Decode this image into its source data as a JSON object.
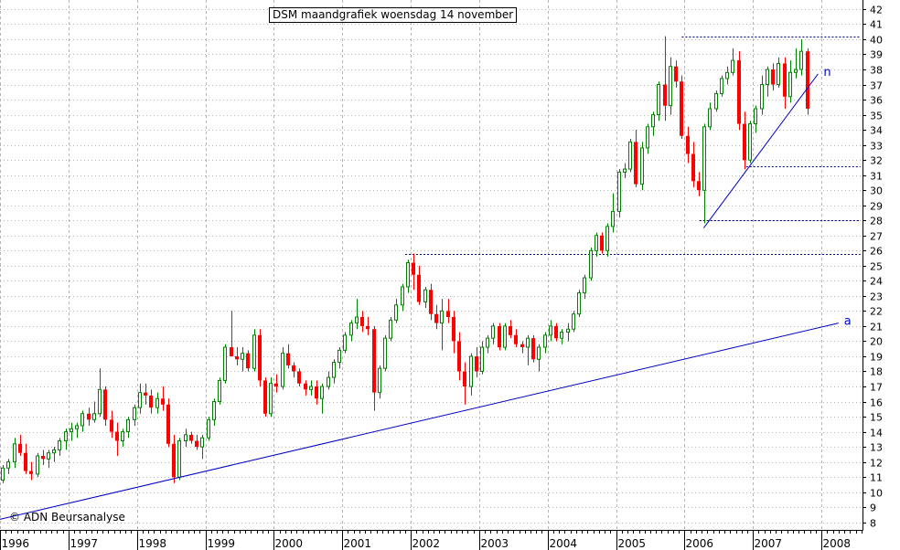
{
  "chart_data": {
    "type": "candlestick",
    "title": "DSM maandgrafiek woensdag 14 november",
    "copyright": "© ADN Beursanalyse",
    "y_ticks": [
      8,
      9,
      10,
      11,
      12,
      13,
      14,
      15,
      16,
      17,
      18,
      19,
      20,
      21,
      22,
      23,
      24,
      25,
      26,
      27,
      28,
      29,
      30,
      31,
      32,
      33,
      34,
      35,
      36,
      37,
      38,
      39,
      40,
      41,
      42
    ],
    "ylim": [
      7.5,
      42.6
    ],
    "x_ticks": [
      "1996",
      "1997",
      "1998",
      "1999",
      "2000",
      "2001",
      "2002",
      "2003",
      "2004",
      "2005",
      "2006",
      "2007",
      "2008"
    ],
    "xlim": [
      1996.0,
      2008.6
    ],
    "colors": {
      "up": "#008000",
      "down": "#ff0000",
      "trend": "#0000c8",
      "level": "#000080",
      "grid": "#b4b4b4"
    },
    "candles_start": 1996.0,
    "candles_per_year": 12,
    "candles": [
      [
        10.8,
        11.8,
        10.6,
        11.6
      ],
      [
        11.6,
        12.2,
        11.2,
        12.0
      ],
      [
        12.0,
        13.6,
        11.6,
        13.2
      ],
      [
        13.2,
        13.8,
        12.4,
        12.6
      ],
      [
        12.6,
        13.2,
        11.2,
        11.4
      ],
      [
        11.4,
        12.0,
        10.8,
        11.2
      ],
      [
        11.2,
        12.6,
        11.0,
        12.4
      ],
      [
        12.4,
        12.8,
        11.8,
        12.2
      ],
      [
        12.2,
        12.8,
        11.6,
        12.6
      ],
      [
        12.6,
        13.0,
        12.0,
        12.8
      ],
      [
        12.8,
        13.6,
        12.4,
        13.4
      ],
      [
        13.4,
        14.2,
        12.8,
        14.0
      ],
      [
        14.0,
        14.6,
        13.4,
        14.2
      ],
      [
        14.2,
        14.6,
        13.6,
        14.4
      ],
      [
        14.4,
        15.4,
        14.0,
        15.2
      ],
      [
        15.2,
        15.6,
        14.4,
        14.8
      ],
      [
        14.8,
        16.0,
        14.6,
        15.2
      ],
      [
        15.2,
        18.2,
        15.0,
        16.8
      ],
      [
        16.8,
        17.0,
        14.4,
        14.8
      ],
      [
        14.8,
        15.4,
        13.6,
        14.0
      ],
      [
        14.0,
        14.6,
        12.4,
        13.4
      ],
      [
        13.4,
        14.2,
        13.0,
        14.0
      ],
      [
        14.0,
        15.0,
        13.6,
        14.8
      ],
      [
        14.8,
        15.8,
        14.4,
        15.6
      ],
      [
        15.6,
        17.2,
        15.2,
        16.6
      ],
      [
        16.6,
        17.2,
        15.8,
        16.4
      ],
      [
        16.4,
        16.8,
        15.2,
        15.6
      ],
      [
        15.6,
        16.6,
        15.2,
        16.2
      ],
      [
        16.2,
        17.0,
        15.4,
        15.8
      ],
      [
        15.8,
        16.2,
        13.0,
        13.2
      ],
      [
        13.2,
        13.8,
        10.6,
        11.0
      ],
      [
        11.0,
        13.6,
        10.8,
        13.4
      ],
      [
        13.4,
        14.2,
        13.0,
        13.8
      ],
      [
        13.8,
        14.0,
        13.2,
        13.4
      ],
      [
        13.4,
        13.8,
        12.8,
        13.0
      ],
      [
        13.0,
        13.8,
        12.2,
        13.6
      ],
      [
        13.6,
        15.0,
        13.4,
        14.8
      ],
      [
        14.8,
        16.2,
        14.4,
        16.0
      ],
      [
        16.0,
        17.6,
        15.8,
        17.4
      ],
      [
        17.4,
        19.8,
        17.2,
        19.6
      ],
      [
        19.6,
        22.0,
        19.0,
        19.0
      ],
      [
        19.0,
        19.6,
        18.4,
        18.8
      ],
      [
        18.8,
        19.6,
        18.0,
        19.2
      ],
      [
        19.2,
        19.4,
        18.0,
        18.2
      ],
      [
        18.2,
        20.8,
        18.0,
        20.4
      ],
      [
        20.4,
        20.8,
        17.0,
        17.4
      ],
      [
        17.4,
        17.6,
        15.0,
        15.2
      ],
      [
        15.2,
        17.6,
        15.0,
        17.2
      ],
      [
        17.2,
        17.8,
        16.6,
        17.0
      ],
      [
        17.0,
        19.6,
        16.8,
        19.2
      ],
      [
        19.2,
        19.8,
        18.2,
        18.4
      ],
      [
        18.4,
        18.6,
        17.6,
        18.0
      ],
      [
        18.0,
        18.2,
        17.0,
        17.2
      ],
      [
        17.2,
        17.4,
        16.4,
        16.8
      ],
      [
        16.8,
        17.4,
        16.4,
        17.0
      ],
      [
        17.0,
        17.4,
        15.8,
        16.2
      ],
      [
        16.2,
        17.2,
        15.2,
        17.0
      ],
      [
        17.0,
        18.0,
        16.8,
        17.6
      ],
      [
        17.6,
        18.8,
        17.2,
        18.6
      ],
      [
        18.6,
        19.6,
        18.2,
        19.4
      ],
      [
        19.4,
        20.6,
        19.2,
        20.4
      ],
      [
        20.4,
        21.4,
        20.0,
        21.2
      ],
      [
        21.2,
        22.8,
        20.8,
        21.6
      ],
      [
        21.6,
        22.0,
        20.6,
        21.0
      ],
      [
        21.0,
        21.6,
        20.4,
        20.8
      ],
      [
        20.8,
        21.0,
        15.4,
        16.6
      ],
      [
        16.6,
        18.4,
        16.2,
        18.2
      ],
      [
        18.2,
        20.4,
        18.0,
        20.2
      ],
      [
        20.2,
        21.6,
        20.0,
        21.4
      ],
      [
        21.4,
        22.8,
        21.2,
        22.4
      ],
      [
        22.4,
        23.8,
        22.0,
        23.6
      ],
      [
        23.6,
        25.4,
        23.2,
        25.2
      ],
      [
        25.2,
        25.8,
        23.4,
        24.4
      ],
      [
        24.4,
        25.0,
        22.4,
        22.6
      ],
      [
        22.6,
        23.6,
        22.2,
        23.4
      ],
      [
        23.4,
        23.8,
        21.4,
        21.8
      ],
      [
        21.8,
        22.4,
        20.8,
        21.2
      ],
      [
        21.2,
        22.8,
        19.4,
        22.0
      ],
      [
        22.0,
        22.8,
        21.2,
        21.6
      ],
      [
        21.6,
        22.0,
        19.2,
        20.0
      ],
      [
        20.0,
        20.6,
        17.4,
        18.0
      ],
      [
        18.0,
        18.6,
        15.8,
        17.0
      ],
      [
        17.0,
        19.2,
        16.4,
        19.0
      ],
      [
        19.0,
        19.6,
        17.6,
        18.0
      ],
      [
        18.0,
        20.0,
        17.8,
        19.6
      ],
      [
        19.6,
        20.4,
        19.2,
        20.2
      ],
      [
        20.2,
        21.2,
        19.8,
        21.0
      ],
      [
        21.0,
        21.2,
        19.4,
        19.6
      ],
      [
        19.6,
        21.2,
        19.4,
        21.0
      ],
      [
        21.0,
        21.4,
        20.2,
        20.4
      ],
      [
        20.4,
        20.8,
        19.6,
        19.8
      ],
      [
        19.8,
        20.0,
        19.2,
        19.6
      ],
      [
        19.6,
        20.4,
        18.4,
        20.2
      ],
      [
        20.2,
        20.4,
        18.6,
        18.8
      ],
      [
        18.8,
        19.8,
        18.0,
        19.6
      ],
      [
        19.6,
        20.6,
        19.2,
        20.4
      ],
      [
        20.4,
        21.4,
        20.0,
        21.0
      ],
      [
        21.0,
        21.2,
        20.0,
        20.2
      ],
      [
        20.2,
        20.8,
        19.8,
        20.6
      ],
      [
        20.6,
        21.2,
        20.0,
        20.8
      ],
      [
        20.8,
        22.0,
        20.6,
        21.8
      ],
      [
        21.8,
        23.4,
        21.6,
        23.2
      ],
      [
        23.2,
        24.4,
        22.8,
        24.2
      ],
      [
        24.2,
        26.2,
        24.0,
        26.0
      ],
      [
        26.0,
        27.2,
        25.6,
        27.0
      ],
      [
        27.0,
        27.2,
        25.8,
        26.0
      ],
      [
        26.0,
        27.8,
        25.6,
        27.6
      ],
      [
        27.6,
        29.8,
        27.2,
        28.6
      ],
      [
        28.6,
        31.4,
        28.2,
        31.2
      ],
      [
        31.2,
        31.8,
        30.8,
        31.4
      ],
      [
        31.4,
        33.4,
        31.2,
        33.2
      ],
      [
        33.2,
        34.0,
        30.2,
        30.4
      ],
      [
        30.4,
        33.2,
        30.0,
        32.8
      ],
      [
        32.8,
        34.4,
        32.4,
        34.2
      ],
      [
        34.2,
        35.2,
        33.6,
        35.0
      ],
      [
        35.0,
        37.2,
        34.6,
        37.0
      ],
      [
        37.0,
        40.2,
        34.6,
        35.6
      ],
      [
        35.6,
        38.8,
        35.0,
        38.2
      ],
      [
        38.2,
        38.6,
        36.8,
        37.2
      ],
      [
        37.2,
        37.6,
        33.4,
        33.6
      ],
      [
        33.6,
        34.2,
        31.8,
        32.4
      ],
      [
        32.4,
        33.2,
        30.2,
        30.6
      ],
      [
        30.6,
        31.2,
        29.6,
        30.0
      ],
      [
        30.0,
        34.4,
        27.8,
        34.2
      ],
      [
        34.2,
        35.8,
        34.0,
        35.4
      ],
      [
        35.4,
        36.6,
        35.2,
        36.4
      ],
      [
        36.4,
        37.6,
        36.2,
        37.4
      ],
      [
        37.4,
        38.2,
        37.0,
        37.8
      ],
      [
        37.8,
        39.4,
        37.6,
        38.6
      ],
      [
        38.6,
        39.2,
        34.0,
        34.4
      ],
      [
        34.4,
        35.2,
        31.4,
        32.0
      ],
      [
        32.0,
        34.6,
        31.8,
        34.4
      ],
      [
        34.4,
        35.6,
        33.8,
        35.4
      ],
      [
        35.4,
        37.6,
        35.0,
        37.0
      ],
      [
        37.0,
        38.2,
        36.2,
        38.0
      ],
      [
        38.0,
        38.4,
        36.6,
        37.0
      ],
      [
        37.0,
        38.8,
        36.8,
        38.4
      ],
      [
        38.4,
        38.8,
        35.4,
        36.2
      ],
      [
        36.2,
        38.6,
        35.8,
        37.8
      ],
      [
        37.8,
        39.4,
        37.4,
        38.0
      ],
      [
        38.0,
        40.0,
        37.6,
        39.2
      ],
      [
        39.2,
        39.4,
        35.0,
        35.4
      ]
    ],
    "trendlines": [
      {
        "label": "a",
        "x1": 1996.0,
        "y1": 8.2,
        "x2": 2008.25,
        "y2": 21.2
      },
      {
        "label": "n",
        "x1": 2006.28,
        "y1": 27.5,
        "x2": 2007.95,
        "y2": 37.7
      }
    ],
    "levels": [
      {
        "y": 40.2,
        "x1": 2005.96,
        "x2": 2008.57
      },
      {
        "y": 31.6,
        "x1": 2006.9,
        "x2": 2008.57
      },
      {
        "y": 28.0,
        "x1": 2006.22,
        "x2": 2008.57
      },
      {
        "y": 25.8,
        "x1": 2001.92,
        "x2": 2008.57
      }
    ]
  }
}
